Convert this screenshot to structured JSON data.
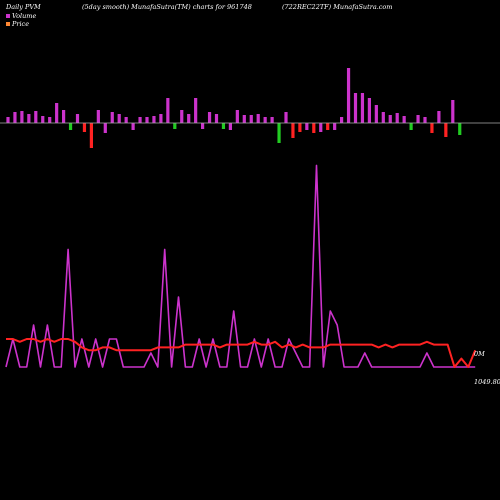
{
  "header": {
    "left": "Daily PVM",
    "mid": "(5day smooth) MunafaSutra(TM) charts for 961748",
    "right": "(722REC22TF) MunafaSutra.com"
  },
  "legend": {
    "items": [
      {
        "label": "Volume",
        "color": "#cc33cc"
      },
      {
        "label": "Price",
        "color": "#ff8833"
      }
    ]
  },
  "right_labels": {
    "volume": "0M",
    "price": "1049.80"
  },
  "colors": {
    "background": "#000000",
    "pvm_positive": "#cc33cc",
    "pvm_negative_red": "#ff2222",
    "pvm_negative_green": "#22cc22",
    "baseline": "#aaaaaa",
    "volume_line": "#cc33cc",
    "price_line": "#ff2222"
  },
  "chart_data": [
    {
      "type": "bar",
      "title": "Daily PVM",
      "x": [
        0,
        1,
        2,
        3,
        4,
        5,
        6,
        7,
        8,
        9,
        10,
        11,
        12,
        13,
        14,
        15,
        16,
        17,
        18,
        19,
        20,
        21,
        22,
        23,
        24,
        25,
        26,
        27,
        28,
        29,
        30,
        31,
        32,
        33,
        34,
        35,
        36,
        37,
        38,
        39,
        40,
        41,
        42,
        43,
        44,
        45,
        46,
        47,
        48,
        49,
        50,
        51,
        52,
        53,
        54,
        55,
        56,
        57,
        58,
        59,
        60,
        61,
        62,
        63,
        64,
        65
      ],
      "values": [
        1.2,
        2.2,
        2.4,
        1.8,
        2.4,
        1.4,
        1.2,
        4.0,
        2.6,
        -1.4,
        1.8,
        -1.8,
        -5.0,
        2.6,
        -2.0,
        2.2,
        1.8,
        1.2,
        -1.4,
        1.2,
        1.2,
        1.4,
        1.8,
        5.0,
        -1.2,
        2.6,
        1.8,
        5.0,
        -1.2,
        2.2,
        1.8,
        -1.2,
        -1.4,
        2.6,
        1.6,
        1.6,
        1.8,
        1.2,
        1.2,
        -4.0,
        2.2,
        -3.0,
        -1.8,
        -1.4,
        -2.0,
        -1.8,
        -1.4,
        -1.4,
        1.2,
        11.0,
        6.0,
        6.0,
        5.0,
        3.6,
        2.2,
        1.6,
        2.0,
        1.4,
        -1.4,
        1.6,
        1.2,
        -2.0,
        2.4,
        -2.8,
        4.6,
        -2.4
      ],
      "bar_colors": [
        "pink",
        "pink",
        "pink",
        "pink",
        "pink",
        "pink",
        "pink",
        "pink",
        "pink",
        "green",
        "pink",
        "red",
        "red",
        "pink",
        "pink",
        "pink",
        "pink",
        "pink",
        "pink",
        "pink",
        "pink",
        "pink",
        "pink",
        "pink",
        "green",
        "pink",
        "pink",
        "pink",
        "pink",
        "pink",
        "pink",
        "green",
        "pink",
        "pink",
        "pink",
        "pink",
        "pink",
        "pink",
        "pink",
        "green",
        "pink",
        "red",
        "red",
        "pink",
        "red",
        "pink",
        "red",
        "pink",
        "pink",
        "pink",
        "pink",
        "pink",
        "pink",
        "pink",
        "pink",
        "pink",
        "pink",
        "pink",
        "green",
        "pink",
        "pink",
        "red",
        "pink",
        "red",
        "pink",
        "green"
      ]
    },
    {
      "type": "line",
      "series": [
        {
          "name": "Volume",
          "values": [
            10,
            20,
            10,
            10,
            25,
            10,
            25,
            10,
            10,
            52,
            10,
            20,
            10,
            20,
            10,
            20,
            20,
            10,
            10,
            10,
            10,
            15,
            10,
            52,
            10,
            35,
            10,
            10,
            20,
            10,
            20,
            10,
            10,
            30,
            10,
            10,
            20,
            10,
            20,
            10,
            10,
            20,
            15,
            10,
            10,
            82,
            10,
            30,
            25,
            10,
            10,
            10,
            15,
            10,
            10,
            10,
            10,
            10,
            10,
            10,
            10,
            15,
            10,
            10,
            10,
            10,
            10,
            10,
            10
          ]
        },
        {
          "name": "Price",
          "values": [
            20,
            20,
            19,
            20,
            20,
            19,
            20,
            19,
            20,
            20,
            19,
            17,
            16,
            16,
            17,
            17,
            16,
            16,
            16,
            16,
            16,
            16,
            17,
            17,
            17,
            17,
            18,
            18,
            18,
            18,
            18,
            17,
            18,
            18,
            18,
            18,
            19,
            18,
            18,
            19,
            17,
            18,
            17,
            18,
            17,
            17,
            17,
            18,
            18,
            18,
            18,
            18,
            18,
            18,
            17,
            18,
            17,
            18,
            18,
            18,
            18,
            19,
            18,
            18,
            18,
            10,
            13,
            10,
            16
          ]
        }
      ]
    }
  ]
}
